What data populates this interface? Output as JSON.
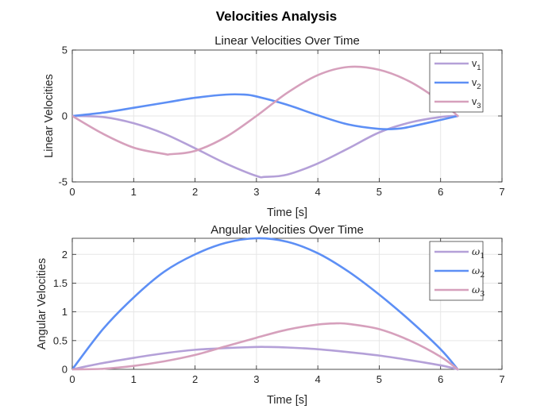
{
  "figure": {
    "title": "Velocities Analysis"
  },
  "chart_data": [
    {
      "type": "line",
      "title": "Linear Velocities Over Time",
      "xlabel": "Time [s]",
      "ylabel": "Linear Velocities",
      "xlim": [
        0,
        7
      ],
      "ylim": [
        -5,
        5
      ],
      "xticks": [
        "0",
        "1",
        "2",
        "3",
        "4",
        "5",
        "6",
        "7"
      ],
      "yticks": [
        "-5",
        "0",
        "5"
      ],
      "grid": true,
      "legend_position": "top-right",
      "series": [
        {
          "name": "v_1",
          "label_base": "v",
          "label_sub": "1",
          "color": "#b4a0d8",
          "x": [
            0,
            0.5,
            1.0,
            1.5,
            2.0,
            2.5,
            3.0,
            3.14,
            3.5,
            4.0,
            4.5,
            5.0,
            5.5,
            6.0,
            6.28
          ],
          "values": [
            0,
            -0.08,
            -0.55,
            -1.35,
            -2.45,
            -3.6,
            -4.55,
            -4.62,
            -4.45,
            -3.6,
            -2.45,
            -1.25,
            -0.5,
            -0.08,
            0
          ]
        },
        {
          "name": "v_2",
          "label_base": "v",
          "label_sub": "2",
          "color": "#5d8ff5",
          "x": [
            0,
            0.5,
            1.0,
            1.5,
            2.0,
            2.5,
            2.8,
            3.0,
            3.5,
            4.0,
            4.5,
            5.0,
            5.3,
            5.5,
            6.0,
            6.28
          ],
          "values": [
            0,
            0.25,
            0.62,
            1.0,
            1.38,
            1.62,
            1.62,
            1.48,
            0.85,
            0.05,
            -0.65,
            -0.98,
            -0.97,
            -0.82,
            -0.3,
            0
          ]
        },
        {
          "name": "v_3",
          "label_base": "v",
          "label_sub": "3",
          "color": "#d6a0bc",
          "x": [
            0,
            0.5,
            1.0,
            1.5,
            1.6,
            2.0,
            2.5,
            3.0,
            3.5,
            4.0,
            4.5,
            5.0,
            5.5,
            6.0,
            6.28
          ],
          "values": [
            0,
            -1.35,
            -2.4,
            -2.88,
            -2.9,
            -2.65,
            -1.6,
            0.0,
            1.75,
            3.1,
            3.72,
            3.5,
            2.6,
            1.1,
            0
          ]
        }
      ]
    },
    {
      "type": "line",
      "title": "Angular Velocities Over Time",
      "xlabel": "Time [s]",
      "ylabel": "Angular Velocities",
      "xlim": [
        0,
        7
      ],
      "ylim": [
        0,
        2.28
      ],
      "xticks": [
        "0",
        "1",
        "2",
        "3",
        "4",
        "5",
        "6",
        "7"
      ],
      "yticks": [
        "0",
        "0.5",
        "1",
        "1.5",
        "2"
      ],
      "grid": true,
      "legend_position": "top-right",
      "series": [
        {
          "name": "ω_1",
          "label_base": "ω",
          "label_sub": "1",
          "color": "#b4a0d8",
          "x": [
            0,
            0.5,
            1.0,
            1.5,
            2.0,
            2.5,
            3.0,
            3.14,
            3.5,
            4.0,
            4.5,
            5.0,
            5.5,
            6.0,
            6.28
          ],
          "values": [
            0,
            0.11,
            0.2,
            0.28,
            0.34,
            0.37,
            0.39,
            0.39,
            0.38,
            0.35,
            0.3,
            0.24,
            0.16,
            0.07,
            0
          ]
        },
        {
          "name": "ω_2",
          "label_base": "ω",
          "label_sub": "2",
          "color": "#5d8ff5",
          "x": [
            0,
            0.5,
            1.0,
            1.5,
            2.0,
            2.5,
            3.0,
            3.5,
            4.0,
            4.5,
            5.0,
            5.5,
            6.0,
            6.28
          ],
          "values": [
            0,
            0.7,
            1.25,
            1.7,
            2.0,
            2.2,
            2.28,
            2.22,
            2.02,
            1.7,
            1.3,
            0.85,
            0.35,
            0
          ]
        },
        {
          "name": "ω_3",
          "label_base": "ω",
          "label_sub": "3",
          "color": "#d6a0bc",
          "x": [
            0,
            0.5,
            1.0,
            1.5,
            2.0,
            2.5,
            3.0,
            3.5,
            4.0,
            4.3,
            4.5,
            5.0,
            5.5,
            6.0,
            6.28
          ],
          "values": [
            0,
            0.01,
            0.06,
            0.14,
            0.25,
            0.4,
            0.55,
            0.69,
            0.78,
            0.8,
            0.79,
            0.7,
            0.5,
            0.22,
            0
          ]
        }
      ]
    }
  ]
}
